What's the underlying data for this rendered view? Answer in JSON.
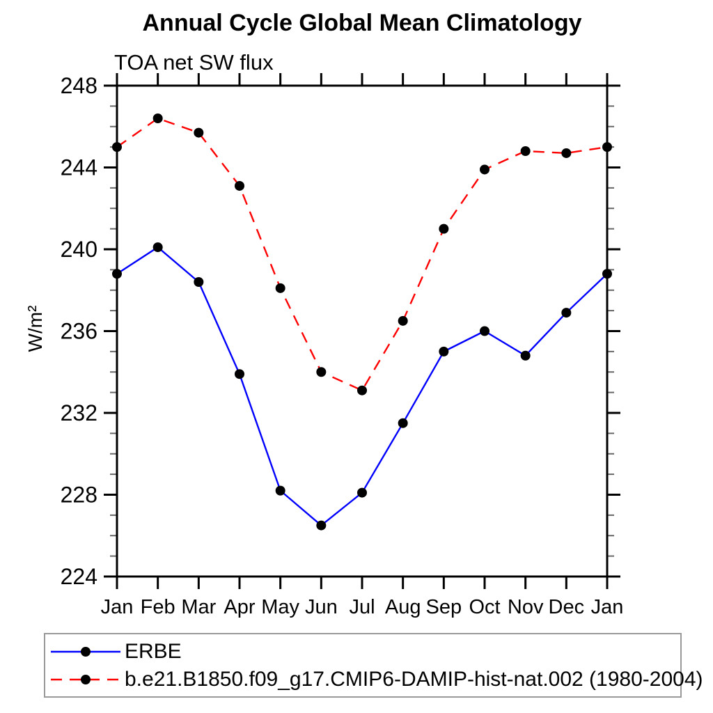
{
  "chart_data": {
    "type": "line",
    "title": "Annual Cycle Global Mean Climatology",
    "subtitle": "TOA net SW flux",
    "ylabel": "W/m²",
    "xlabel": "",
    "categories": [
      "Jan",
      "Feb",
      "Mar",
      "Apr",
      "May",
      "Jun",
      "Jul",
      "Aug",
      "Sep",
      "Oct",
      "Nov",
      "Dec",
      "Jan"
    ],
    "ylim": [
      224,
      248
    ],
    "yticks_major": [
      224,
      228,
      232,
      236,
      240,
      244,
      248
    ],
    "ytick_minor_step": 1,
    "grid": false,
    "legend_position": "bottom-left-box",
    "axis_color": "#000000",
    "minor_tick_color": "#666666",
    "series": [
      {
        "name": "ERBE",
        "color": "#0000ff",
        "line_style": "solid",
        "marker": "circle",
        "marker_color": "#000000",
        "values": [
          238.8,
          240.1,
          238.4,
          233.9,
          228.2,
          226.5,
          228.1,
          231.5,
          235.0,
          236.0,
          234.8,
          236.9,
          238.8
        ]
      },
      {
        "name": "b.e21.B1850.f09_g17.CMIP6-DAMIP-hist-nat.002 (1980-2004)",
        "color": "#ff0000",
        "line_style": "dashed",
        "marker": "circle",
        "marker_color": "#000000",
        "values": [
          245.0,
          246.4,
          245.7,
          243.1,
          238.1,
          234.0,
          233.1,
          236.5,
          241.0,
          243.9,
          244.8,
          244.7,
          245.0
        ]
      }
    ]
  }
}
